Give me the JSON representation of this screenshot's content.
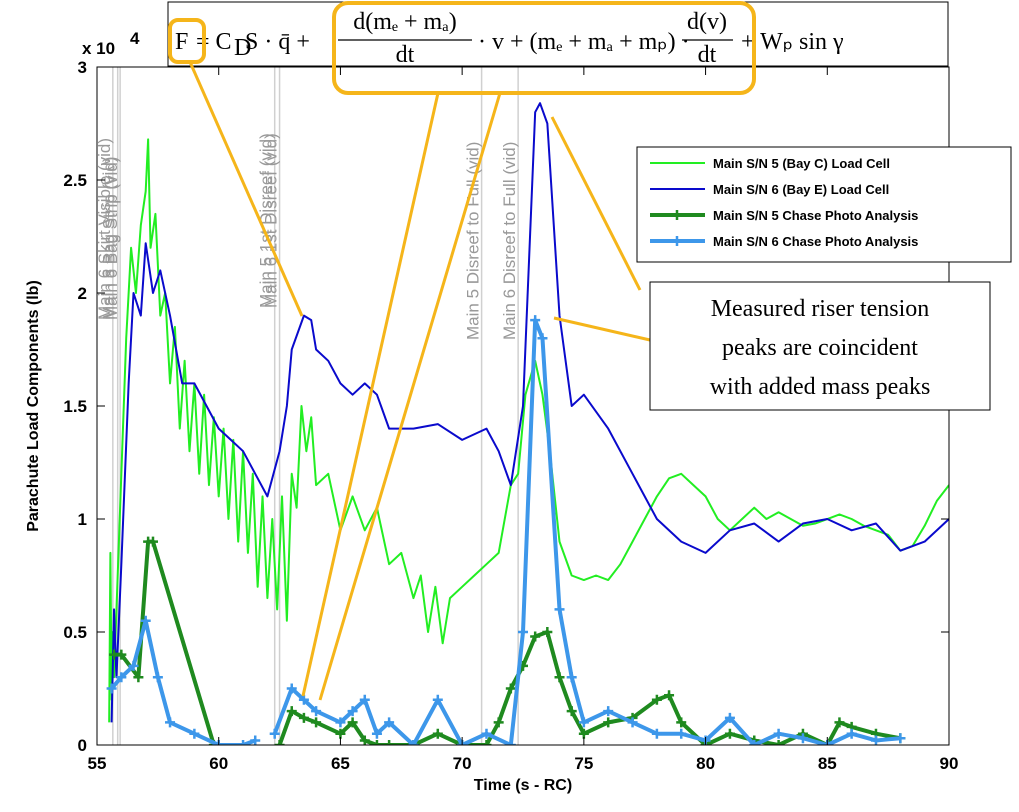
{
  "chart_data": {
    "type": "line",
    "equation": {
      "f": "F",
      "t1": "= C",
      "t1sub": "D",
      "t2": "S · q̄ +",
      "num1": "d(mₑ + mₐ)",
      "den1": "dt",
      "t3": "· v + (mₑ + mₐ + mₚ) ·",
      "num2": "d(v)",
      "den2": "dt",
      "t4": "+ Wₚ sin γ"
    },
    "xlabel": "Time (s - RC)",
    "ylabel": "Parachute Load Components (lb)",
    "y_multiplier": "x 10",
    "y_multiplier_exp": "4",
    "xlim": [
      55,
      90
    ],
    "ylim": [
      0,
      3
    ],
    "xticks": [
      55,
      60,
      65,
      70,
      75,
      80,
      85,
      90
    ],
    "yticks": [
      0,
      0.5,
      1,
      1.5,
      2,
      2.5,
      3
    ],
    "events": [
      {
        "x": 55.65,
        "label": "Main 6 Skirt Visible (vid)"
      },
      {
        "x": 55.85,
        "label": "Main 5 Bag Strip (vid)"
      },
      {
        "x": 55.95,
        "label": "Main 6 Bag Strip (vid)"
      },
      {
        "x": 62.3,
        "label": "Main 5 1st Disreef (vid)"
      },
      {
        "x": 62.5,
        "label": "Main 6 1st Disreef (vid)"
      },
      {
        "x": 70.8,
        "label": "Main 5 Disreef to Full (vid)"
      },
      {
        "x": 72.3,
        "label": "Main 6 Disreef to Full (vid)"
      }
    ],
    "annotation": [
      "Measured riser tension",
      "peaks are coincident",
      "with added mass peaks"
    ],
    "legend": "upper right",
    "series": [
      {
        "name": "Main S/N 5 (Bay C) Load Cell",
        "color": "#22ee22",
        "width": 2,
        "marker": null,
        "x": [
          55.5,
          55.55,
          55.6,
          55.65,
          55.7,
          55.8,
          56,
          56.2,
          56.4,
          56.6,
          56.8,
          57,
          57.1,
          57.2,
          57.4,
          57.6,
          57.8,
          58,
          58.2,
          58.4,
          58.6,
          58.8,
          59,
          59.2,
          59.4,
          59.6,
          59.8,
          60,
          60.2,
          60.4,
          60.6,
          60.8,
          61,
          61.2,
          61.4,
          61.6,
          61.8,
          62,
          62.2,
          62.4,
          62.6,
          62.8,
          63,
          63.2,
          63.4,
          63.6,
          63.8,
          64,
          64.5,
          65,
          65.5,
          66,
          66.5,
          67,
          67.5,
          68,
          68.3,
          68.6,
          68.9,
          69.2,
          69.5,
          70,
          70.5,
          71,
          71.5,
          72,
          72.3,
          72.6,
          73,
          73.3,
          73.6,
          74,
          74.5,
          75,
          75.5,
          76,
          76.5,
          77,
          77.5,
          78,
          78.5,
          79,
          79.5,
          80,
          80.5,
          81,
          81.5,
          82,
          82.5,
          83,
          83.5,
          84,
          84.5,
          85,
          85.5,
          86,
          86.5,
          87,
          87.5,
          88,
          88.5,
          89,
          89.5,
          90
        ],
        "values": [
          0.1,
          0.85,
          0.2,
          0.5,
          0.3,
          0.6,
          1.2,
          1.8,
          2.2,
          2.0,
          2.3,
          2.45,
          2.68,
          2.2,
          2.35,
          1.9,
          2.0,
          1.6,
          1.85,
          1.4,
          1.7,
          1.3,
          1.6,
          1.2,
          1.55,
          1.15,
          1.45,
          1.1,
          1.4,
          1.0,
          1.35,
          0.9,
          1.3,
          0.85,
          1.2,
          0.7,
          1.1,
          0.65,
          1.0,
          0.6,
          1.1,
          0.55,
          1.2,
          1.05,
          1.5,
          1.3,
          1.45,
          1.15,
          1.2,
          0.95,
          1.1,
          0.95,
          1.05,
          0.8,
          0.85,
          0.65,
          0.75,
          0.5,
          0.7,
          0.45,
          0.65,
          0.7,
          0.75,
          0.8,
          0.85,
          1.15,
          1.2,
          1.55,
          1.7,
          1.55,
          1.3,
          0.9,
          0.75,
          0.73,
          0.75,
          0.73,
          0.8,
          0.9,
          1.0,
          1.1,
          1.18,
          1.2,
          1.15,
          1.1,
          1.0,
          0.95,
          1.0,
          1.05,
          1.0,
          1.03,
          1.0,
          0.97,
          0.98,
          1.0,
          1.02,
          1.0,
          0.97,
          0.95,
          0.93,
          0.86,
          0.88,
          0.97,
          1.08,
          1.15
        ]
      },
      {
        "name": "Main S/N 6 (Bay E) Load Cell",
        "color": "#0a0acc",
        "width": 2,
        "marker": null,
        "x": [
          55.6,
          55.7,
          55.8,
          56,
          56.3,
          56.5,
          56.8,
          57,
          57.3,
          57.6,
          58,
          58.5,
          59,
          59.5,
          60,
          60.5,
          61,
          61.5,
          62,
          62.5,
          62.8,
          63,
          63.5,
          63.8,
          64,
          64.5,
          65,
          65.5,
          66,
          66.5,
          67,
          68,
          69,
          70,
          71,
          71.5,
          72,
          72.5,
          73,
          73.2,
          73.5,
          74,
          74.5,
          75,
          76,
          77,
          78,
          79,
          80,
          81,
          82,
          83,
          84,
          85,
          86,
          87,
          88,
          89,
          90
        ],
        "values": [
          0.1,
          0.6,
          0.3,
          0.8,
          1.6,
          2.0,
          1.9,
          2.22,
          2.0,
          2.1,
          1.9,
          1.6,
          1.6,
          1.5,
          1.4,
          1.35,
          1.3,
          1.2,
          1.1,
          1.3,
          1.5,
          1.75,
          1.9,
          1.88,
          1.75,
          1.7,
          1.6,
          1.55,
          1.6,
          1.55,
          1.4,
          1.4,
          1.42,
          1.35,
          1.4,
          1.3,
          1.15,
          1.5,
          2.8,
          2.84,
          2.75,
          1.9,
          1.5,
          1.55,
          1.4,
          1.2,
          1.0,
          0.9,
          0.85,
          0.95,
          0.98,
          0.9,
          0.98,
          1.0,
          0.95,
          0.98,
          0.86,
          0.9,
          1.0
        ]
      },
      {
        "name": "Main S/N 5 Chase Photo Analysis",
        "color": "#1f8a1f",
        "width": 4,
        "marker": "+",
        "x": [
          55.7,
          56,
          56.7,
          57.1,
          57.3,
          59.8,
          61,
          62.5,
          63,
          63.5,
          64,
          65,
          65.5,
          66,
          66.5,
          67,
          68,
          69,
          70,
          71,
          71.5,
          72,
          72.5,
          73,
          73.5,
          74,
          74.5,
          75,
          76,
          77,
          78,
          78.5,
          79,
          80,
          81,
          82,
          83,
          84,
          85,
          85.5,
          86,
          87,
          88
        ],
        "values": [
          0.4,
          0.4,
          0.3,
          0.9,
          0.9,
          0,
          null,
          0,
          0.15,
          0.12,
          0.1,
          0.05,
          0.1,
          0.02,
          0,
          0,
          0,
          0.05,
          0,
          0,
          0.1,
          0.25,
          0.35,
          0.48,
          0.5,
          0.3,
          0.15,
          0.05,
          0.1,
          0.12,
          0.2,
          0.22,
          0.1,
          0,
          0.05,
          0.02,
          0,
          0.05,
          0,
          0.1,
          0.08,
          0.05,
          0.03
        ]
      },
      {
        "name": "Main S/N 6 Chase Photo Analysis",
        "color": "#3d97ea",
        "width": 4,
        "marker": "+",
        "x": [
          55.6,
          56,
          56.5,
          57,
          57.5,
          58,
          59,
          60,
          61,
          61.5,
          62,
          62.3,
          63,
          63.5,
          64,
          65,
          65.5,
          66,
          66.5,
          67,
          68,
          69,
          70,
          71,
          72,
          72.5,
          73,
          73.3,
          74,
          74.5,
          75,
          76,
          77,
          78,
          79,
          80,
          81,
          82,
          83,
          84,
          85,
          86,
          87,
          88
        ],
        "values": [
          0.25,
          0.3,
          0.35,
          0.55,
          0.3,
          0.1,
          0.05,
          0,
          0,
          0.02,
          null,
          0.05,
          0.25,
          0.2,
          0.15,
          0.1,
          0.15,
          0.2,
          0.05,
          0.1,
          0,
          0.2,
          0,
          0.05,
          0,
          0.5,
          1.88,
          1.8,
          0.6,
          0.3,
          0.1,
          0.15,
          0.1,
          0.05,
          0.05,
          0.02,
          0.12,
          0,
          0.05,
          0.03,
          0,
          0.05,
          0.02,
          0.03
        ]
      }
    ]
  }
}
